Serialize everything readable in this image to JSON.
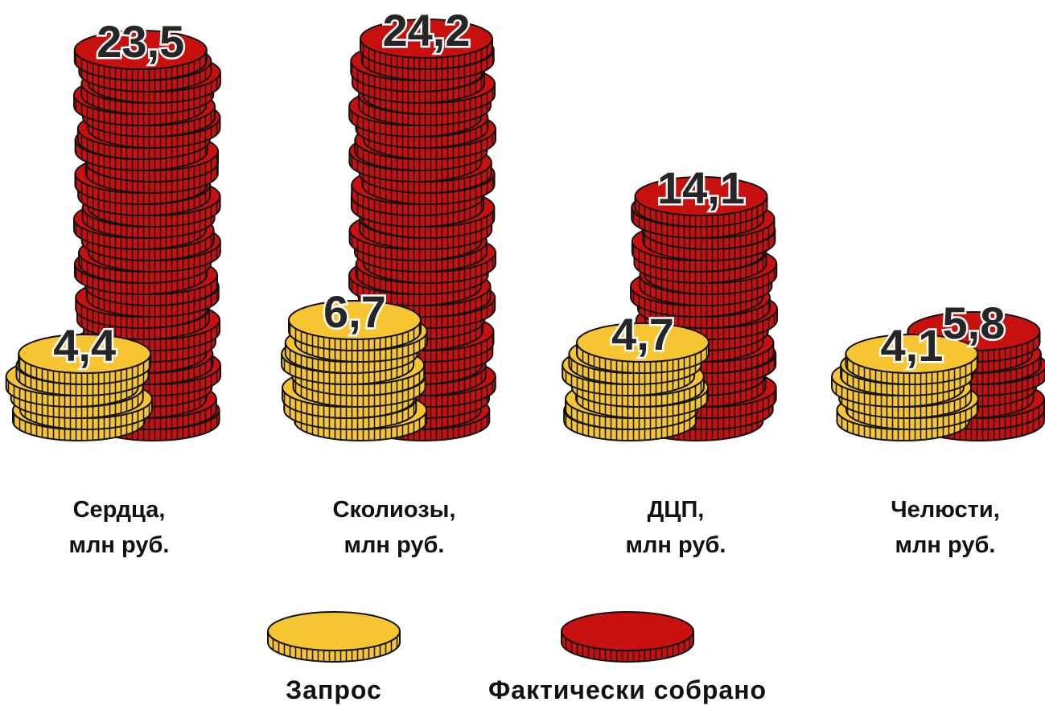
{
  "chart_data": {
    "type": "coin-stack",
    "categories": [
      "Сердца,\nмлн руб.",
      "Сколиозы,\nмлн руб.",
      "ДЦП,\nмлн руб.",
      "Челюсти,\nмлн руб."
    ],
    "series": [
      {
        "name": "Запрос",
        "color": "#f6c531",
        "values": [
          4.4,
          6.7,
          4.7,
          4.1
        ],
        "value_labels": [
          "4,4",
          "6,7",
          "4,7",
          "4,1"
        ]
      },
      {
        "name": "Фактически собрано",
        "color": "#c8100f",
        "values": [
          23.5,
          24.2,
          14.1,
          5.8
        ],
        "value_labels": [
          "23,5",
          "24,2",
          "14,1",
          "5,8"
        ]
      }
    ]
  }
}
